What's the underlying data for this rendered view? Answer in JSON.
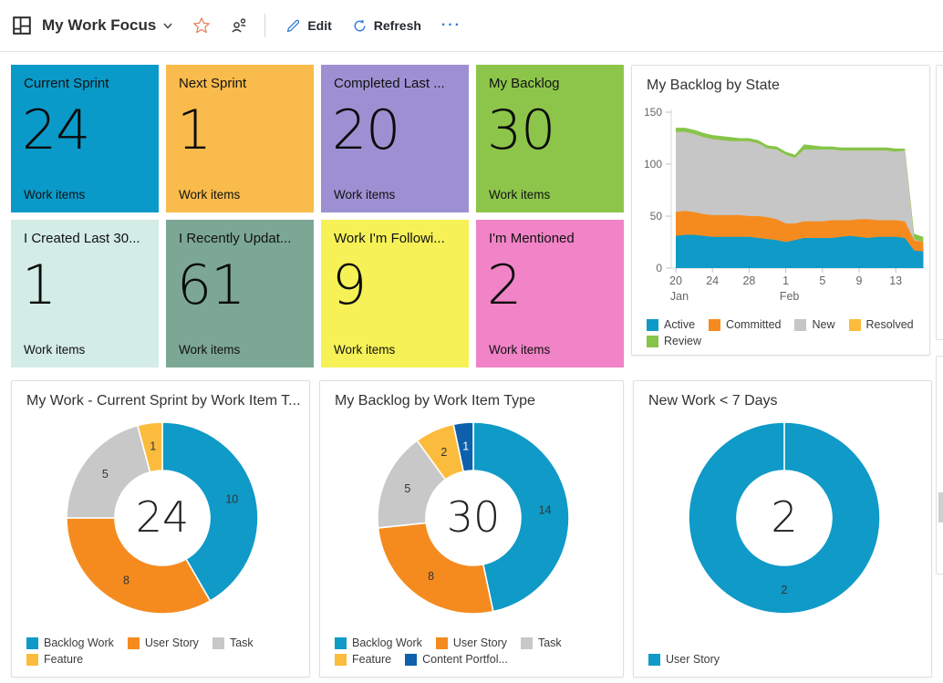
{
  "header": {
    "dashboard_title": "My Work Focus",
    "edit_label": "Edit",
    "refresh_label": "Refresh",
    "more_label": "···"
  },
  "tiles": [
    {
      "title": "Current Sprint",
      "value": "24",
      "subtitle": "Work items",
      "bg": "#0a9ac9"
    },
    {
      "title": "Next Sprint",
      "value": "1",
      "subtitle": "Work items",
      "bg": "#f9bb4b"
    },
    {
      "title": "Completed Last ...",
      "value": "20",
      "subtitle": "Work items",
      "bg": "#9d90d2"
    },
    {
      "title": "My Backlog",
      "value": "30",
      "subtitle": "Work items",
      "bg": "#8dc54b"
    },
    {
      "title": "I Created Last 30...",
      "value": "1",
      "subtitle": "Work items",
      "bg": "#d3ece6"
    },
    {
      "title": "I Recently Updat...",
      "value": "61",
      "subtitle": "Work items",
      "bg": "#7ca794"
    },
    {
      "title": "Work I'm Followi...",
      "value": "9",
      "subtitle": "Work items",
      "bg": "#f5f157"
    },
    {
      "title": "I'm Mentioned",
      "value": "2",
      "subtitle": "Work items",
      "bg": "#f183c7"
    }
  ],
  "chart_data": [
    {
      "type": "area",
      "title": "My Backlog by State",
      "ylim": [
        0,
        150
      ],
      "y_ticks": [
        0,
        50,
        100,
        150
      ],
      "grid": false,
      "legend_position": "bottom",
      "x_ticks": [
        {
          "day": 0,
          "label": "20"
        },
        {
          "day": 4,
          "label": "24"
        },
        {
          "day": 8,
          "label": "28"
        },
        {
          "day": 12,
          "label": "1"
        },
        {
          "day": 16,
          "label": "5"
        },
        {
          "day": 20,
          "label": "9"
        },
        {
          "day": 24,
          "label": "13"
        }
      ],
      "month_labels": [
        {
          "day": 0,
          "label": "Jan"
        },
        {
          "day": 12,
          "label": "Feb"
        }
      ],
      "series": [
        {
          "name": "Active",
          "color": "#0f9ac8",
          "values": [
            31,
            32,
            32,
            31,
            30,
            30,
            30,
            30,
            30,
            29,
            28,
            27,
            25,
            27,
            29,
            29,
            29,
            29,
            30,
            31,
            30,
            29,
            30,
            30,
            30,
            29,
            17,
            16
          ]
        },
        {
          "name": "Committed",
          "color": "#f58b1f",
          "values": [
            23,
            23,
            22,
            21,
            21,
            21,
            21,
            21,
            20,
            21,
            21,
            20,
            18,
            16,
            16,
            16,
            16,
            17,
            16,
            15,
            17,
            18,
            16,
            16,
            16,
            16,
            10,
            9
          ]
        },
        {
          "name": "New",
          "color": "#c6c6c6",
          "values": [
            77,
            76,
            75,
            74,
            73,
            72,
            71,
            71,
            72,
            70,
            66,
            67,
            66,
            63,
            69,
            69,
            69,
            68,
            67,
            67,
            66,
            66,
            67,
            67,
            66,
            68,
            1,
            0
          ]
        },
        {
          "name": "Resolved",
          "color": "#fbbc3d",
          "values": [
            0,
            0,
            0,
            0,
            0,
            0,
            0,
            0,
            0,
            0,
            0,
            0,
            0,
            0,
            0,
            0,
            0,
            0,
            0,
            0,
            0,
            0,
            0,
            0,
            0,
            0,
            0,
            0
          ]
        },
        {
          "name": "Review",
          "color": "#86c44a",
          "values": [
            4,
            4,
            4,
            4,
            4,
            4,
            4,
            3,
            3,
            3,
            3,
            3,
            3,
            3,
            5,
            4,
            3,
            3,
            3,
            3,
            3,
            3,
            3,
            3,
            3,
            2,
            5,
            5
          ]
        }
      ]
    },
    {
      "type": "donut",
      "title": "My Work - Current Sprint by Work Item T...",
      "center_value": "24",
      "slices": [
        {
          "label": "Backlog Work",
          "value": 10,
          "color": "#0f9ac8"
        },
        {
          "label": "User Story",
          "value": 8,
          "color": "#f58b1f"
        },
        {
          "label": "Task",
          "value": 5,
          "color": "#c8c8c8"
        },
        {
          "label": "Feature",
          "value": 1,
          "color": "#fbbc3d"
        }
      ]
    },
    {
      "type": "donut",
      "title": "My Backlog by Work Item Type",
      "center_value": "30",
      "slices": [
        {
          "label": "Backlog Work",
          "value": 14,
          "color": "#0f9ac8"
        },
        {
          "label": "User Story",
          "value": 8,
          "color": "#f58b1f"
        },
        {
          "label": "Task",
          "value": 5,
          "color": "#c8c8c8"
        },
        {
          "label": "Feature",
          "value": 2,
          "color": "#fbbc3d"
        },
        {
          "label": "Content Portfol...",
          "value": 1,
          "color": "#0d60ab",
          "label_color": "#ffffff"
        }
      ]
    },
    {
      "type": "donut",
      "title": "New Work < 7 Days",
      "center_value": "2",
      "slices": [
        {
          "label": "User Story",
          "value": 2,
          "color": "#0f9ac8"
        }
      ]
    }
  ]
}
